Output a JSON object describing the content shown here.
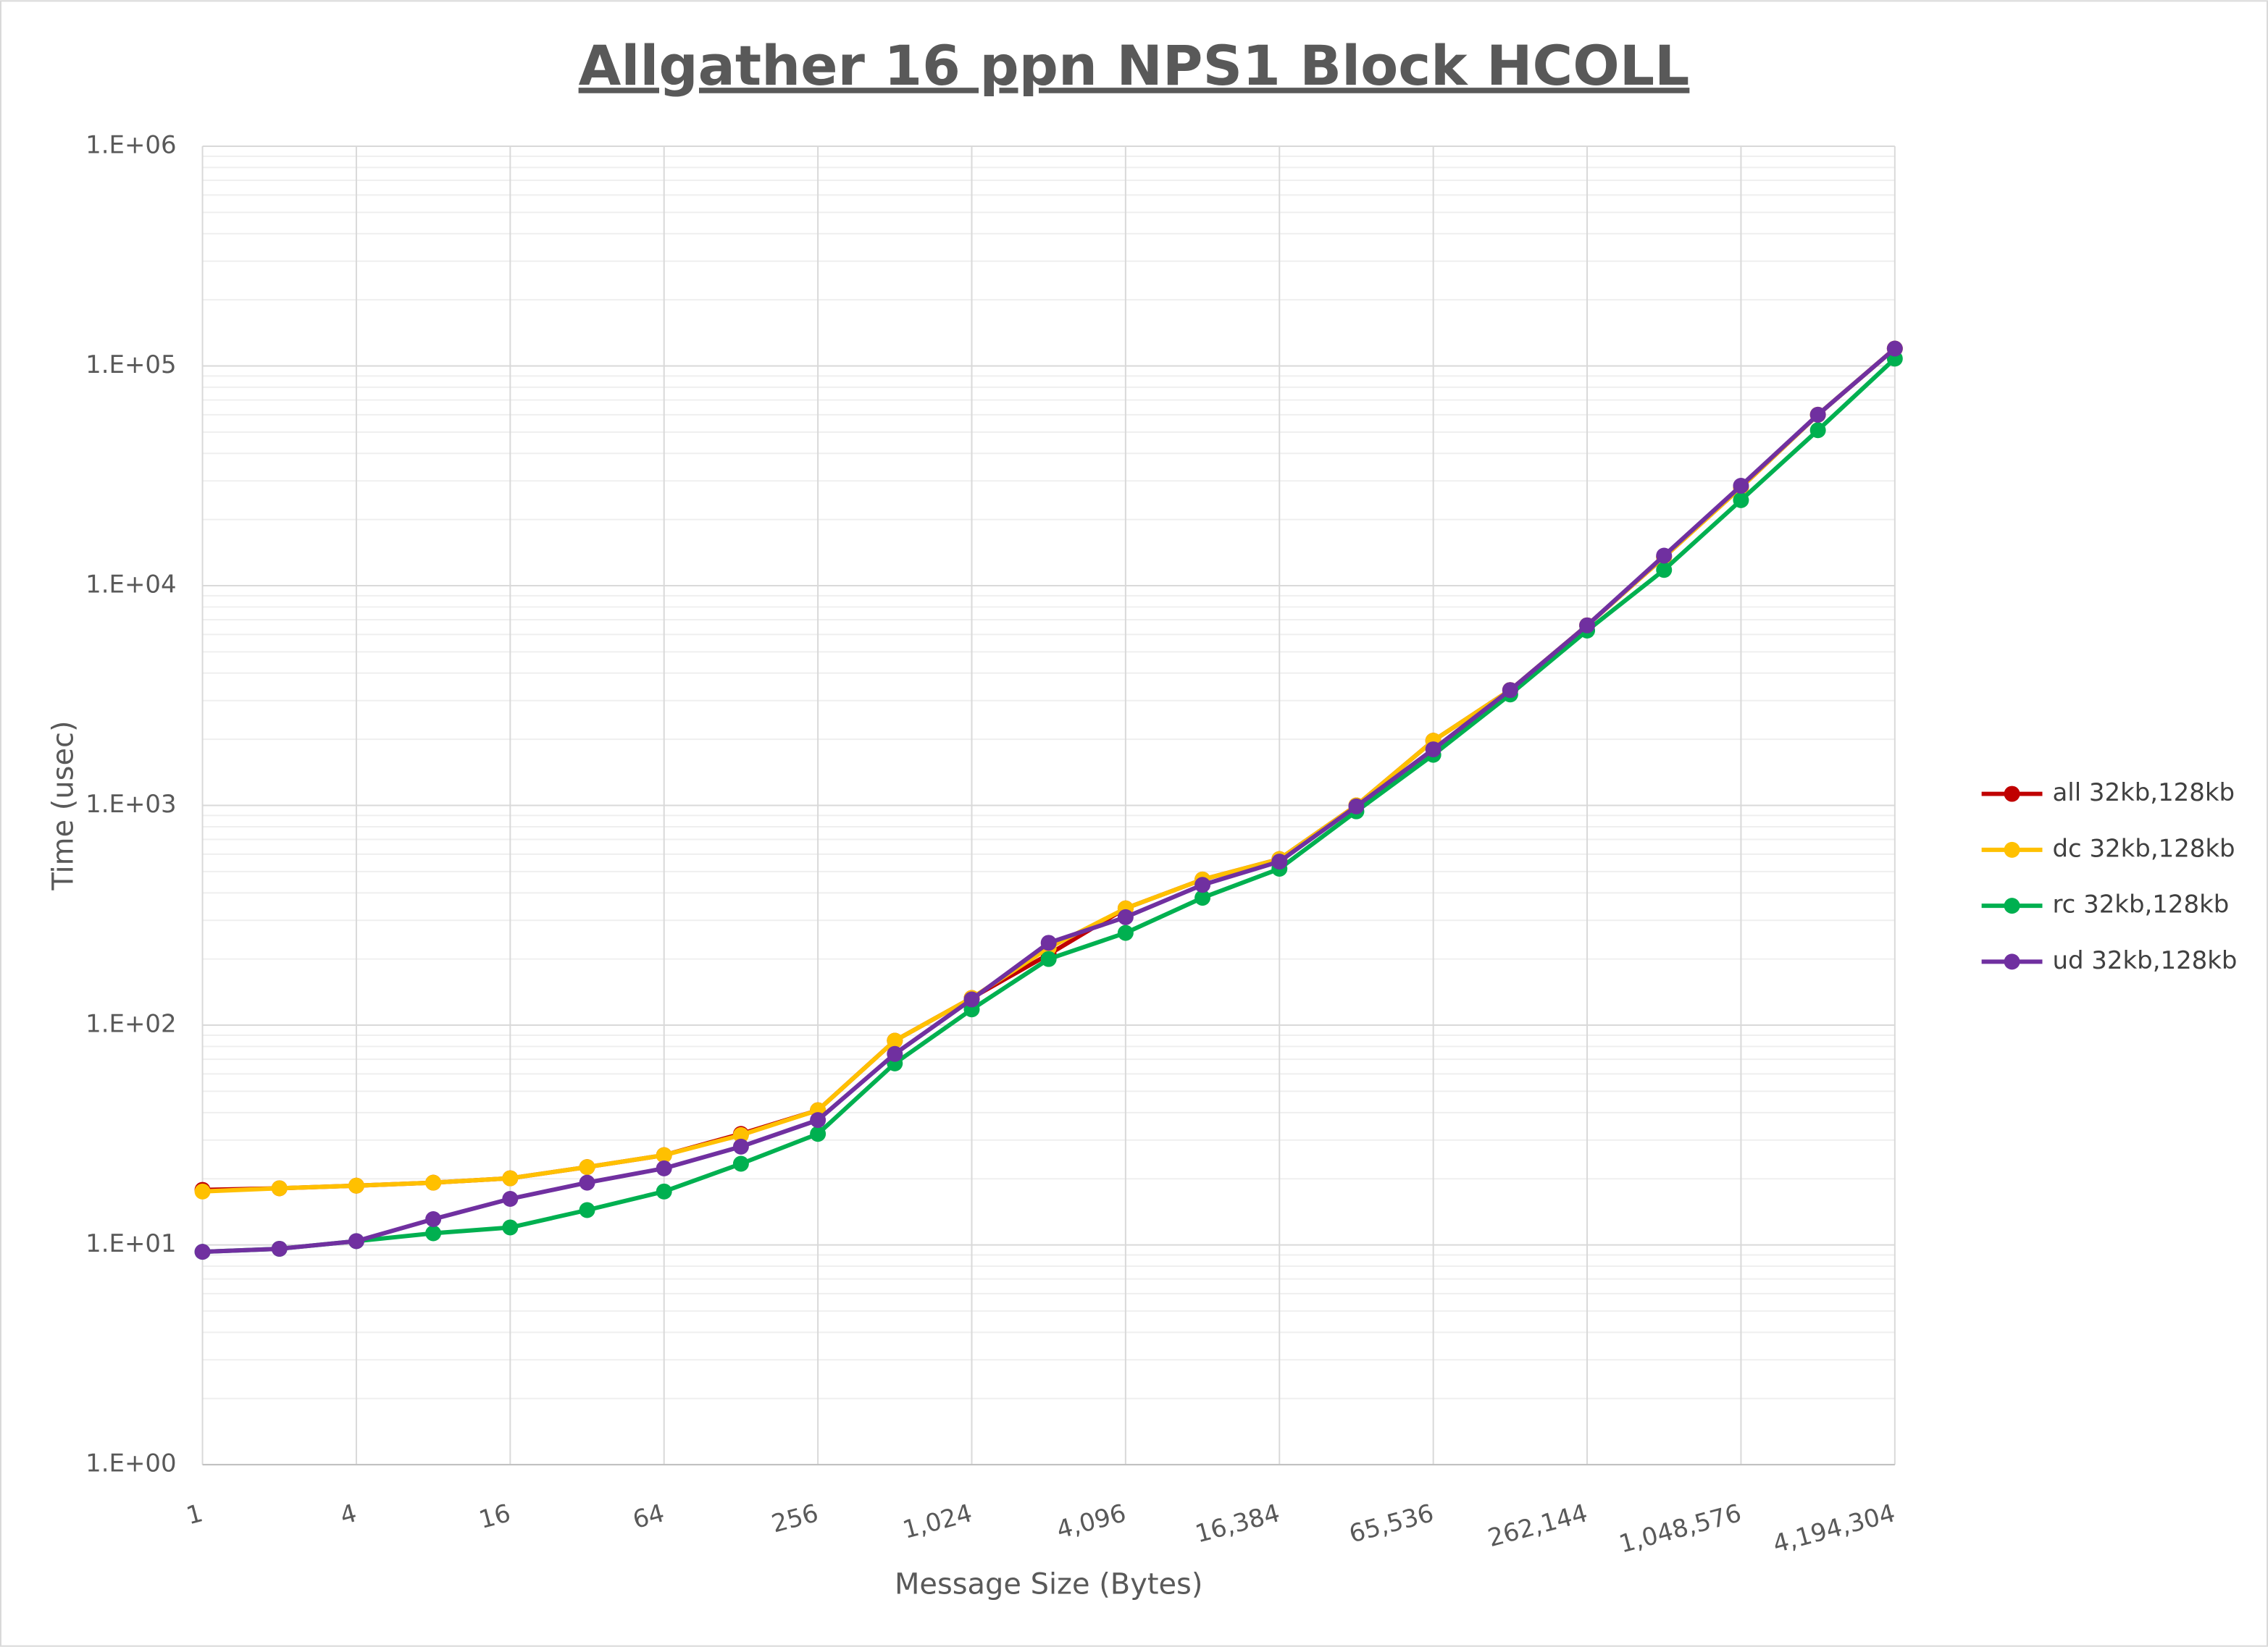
{
  "chart_data": {
    "type": "line",
    "title": "Allgather 16 ppn NPS1 Block HCOLL",
    "x_label": "Message Size (Bytes)",
    "y_label": "Time (usec)",
    "x": [
      1,
      2,
      4,
      8,
      16,
      32,
      64,
      128,
      256,
      512,
      1024,
      2048,
      4096,
      8192,
      16384,
      32768,
      65536,
      131072,
      262144,
      524288,
      1048576,
      2097152,
      4194304
    ],
    "xlog": true,
    "ylog": true,
    "grid": true,
    "legend": "right",
    "xlim": [
      1,
      4194304
    ],
    "xticks": [
      1,
      4,
      16,
      64,
      256,
      {
        "value": 1024,
        "label": "1,024"
      },
      {
        "value": 4096,
        "label": "4,096"
      },
      {
        "value": 16384,
        "label": "16,384"
      },
      {
        "value": 65536,
        "label": "65,536"
      },
      {
        "value": 262144,
        "label": "262,144"
      },
      {
        "value": 1048576,
        "label": "1,048,576"
      },
      {
        "value": 4194304,
        "label": "4,194,304"
      }
    ],
    "ylim": [
      1,
      1000000
    ],
    "yticks": [
      {
        "value": 1,
        "label": "1.E+00"
      },
      {
        "value": 10,
        "label": "1.E+01"
      },
      {
        "value": 100,
        "label": "1.E+02"
      },
      {
        "value": 1000,
        "label": "1.E+03"
      },
      {
        "value": 10000,
        "label": "1.E+04"
      },
      {
        "value": 100000,
        "label": "1.E+05"
      },
      {
        "value": 1000000,
        "label": "1.E+06"
      }
    ],
    "series": [
      {
        "name": "all 32kb,128kb",
        "color": "#c00000",
        "values": [
          17.8,
          18.1,
          18.6,
          19.2,
          20.1,
          22.6,
          25.6,
          32,
          41,
          85,
          133,
          210,
          340,
          460,
          570,
          1000,
          1970,
          3350,
          6600,
          13500,
          28000,
          60000,
          120000
        ]
      },
      {
        "name": "dc 32kb,128kb",
        "color": "#ffc000",
        "values": [
          17.5,
          18.1,
          18.6,
          19.2,
          20.1,
          22.6,
          25.6,
          31.6,
          41,
          85,
          133,
          225,
          340,
          460,
          570,
          1000,
          1970,
          3350,
          6600,
          13500,
          28000,
          60000,
          120000
        ]
      },
      {
        "name": "rc 32kb,128kb",
        "color": "#00b050",
        "values": [
          9.3,
          9.6,
          10.4,
          11.3,
          12,
          14.4,
          17.5,
          23.4,
          32,
          67,
          118,
          200,
          263,
          380,
          515,
          940,
          1700,
          3200,
          6250,
          11800,
          24500,
          51000,
          108000
        ]
      },
      {
        "name": "ud 32kb,128kb",
        "color": "#7030a0",
        "values": [
          9.3,
          9.6,
          10.4,
          13.1,
          16.2,
          19.2,
          22.3,
          28,
          37,
          74,
          131,
          237,
          310,
          435,
          555,
          990,
          1800,
          3350,
          6600,
          13700,
          28500,
          60000,
          120000
        ]
      }
    ]
  }
}
